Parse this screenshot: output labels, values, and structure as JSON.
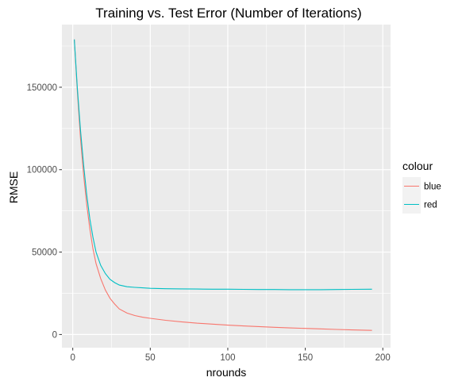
{
  "chart_data": {
    "type": "line",
    "title": "Training vs. Test Error (Number of Iterations)",
    "xlabel": "nrounds",
    "ylabel": "RMSE",
    "xlim": [
      -7,
      205
    ],
    "ylim": [
      -8000,
      188000
    ],
    "x_ticks": [
      0,
      50,
      100,
      150,
      200
    ],
    "y_ticks": [
      0,
      50000,
      100000,
      150000
    ],
    "x_tick_labels": [
      "0",
      "50",
      "100",
      "150",
      "200"
    ],
    "y_tick_labels": [
      "0",
      "50000",
      "100000",
      "150000"
    ],
    "grid": true,
    "legend": {
      "title": "colour",
      "placement": "right",
      "entries": [
        {
          "label": "blue",
          "color": "#F8766D"
        },
        {
          "label": "red",
          "color": "#00BFC4"
        }
      ]
    },
    "series": [
      {
        "name": "blue",
        "color": "#F8766D",
        "x": [
          1,
          3,
          5,
          7,
          9,
          11,
          13,
          15,
          18,
          21,
          24,
          27,
          30,
          35,
          40,
          45,
          50,
          60,
          70,
          80,
          90,
          100,
          110,
          120,
          130,
          140,
          150,
          160,
          170,
          180,
          193
        ],
        "y": [
          179000,
          147000,
          119000,
          97000,
          79000,
          64000,
          52000,
          43000,
          34000,
          27000,
          22000,
          18500,
          15500,
          13000,
          11500,
          10500,
          9800,
          8600,
          7700,
          6900,
          6300,
          5700,
          5200,
          4800,
          4400,
          4000,
          3700,
          3400,
          3100,
          2800,
          2500
        ]
      },
      {
        "name": "red",
        "color": "#00BFC4",
        "x": [
          1,
          3,
          5,
          7,
          9,
          11,
          13,
          15,
          18,
          21,
          24,
          27,
          30,
          35,
          40,
          45,
          50,
          60,
          70,
          80,
          90,
          100,
          110,
          120,
          130,
          140,
          150,
          160,
          170,
          180,
          193
        ],
        "y": [
          179000,
          149000,
          124000,
          103000,
          85000,
          70000,
          59000,
          50000,
          42000,
          37000,
          33500,
          31500,
          30000,
          29000,
          28600,
          28300,
          28000,
          27800,
          27700,
          27600,
          27500,
          27500,
          27400,
          27300,
          27300,
          27200,
          27200,
          27200,
          27300,
          27400,
          27500
        ]
      }
    ]
  }
}
